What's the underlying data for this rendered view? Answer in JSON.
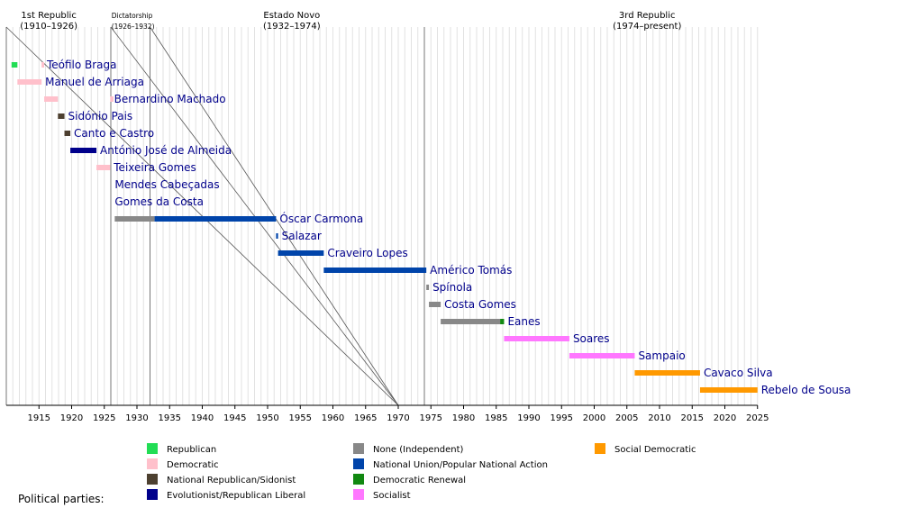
{
  "chart_data": {
    "type": "timeline",
    "title": "",
    "xlabel": "",
    "ylabel": "",
    "xlim": [
      1910,
      2025
    ],
    "x_ticks": [
      1915,
      1920,
      1925,
      1930,
      1935,
      1940,
      1945,
      1950,
      1955,
      1960,
      1965,
      1970,
      1975,
      1980,
      1985,
      1990,
      1995,
      2000,
      2005,
      2010,
      2015,
      2020,
      2025
    ],
    "grid": true,
    "eras": [
      {
        "name": "1st Republic",
        "range": "(1910–1926)",
        "start": 1910,
        "end": 1926
      },
      {
        "name": "Dictatorship",
        "range": "(1926–1932)",
        "start": 1926,
        "end": 1932
      },
      {
        "name": "Estado Novo",
        "range": "(1932–1974)",
        "start": 1932,
        "end": 1974
      },
      {
        "name": "3rd Republic",
        "range": "(1974–present)",
        "start": 1974,
        "end": 2025
      }
    ],
    "presidents": [
      {
        "name": "Teófilo Braga",
        "terms": [
          {
            "start": 1910.8,
            "end": 1911.7,
            "party": "republican"
          },
          {
            "start": 1915.4,
            "end": 1915.8,
            "party": "democratic"
          }
        ]
      },
      {
        "name": "Manuel de Arriaga",
        "terms": [
          {
            "start": 1911.7,
            "end": 1915.4,
            "party": "democratic"
          }
        ]
      },
      {
        "name": "Bernardino Machado",
        "terms": [
          {
            "start": 1915.8,
            "end": 1917.9,
            "party": "democratic"
          },
          {
            "start": 1925.9,
            "end": 1926.4,
            "party": "democratic"
          }
        ]
      },
      {
        "name": "Sidónio Pais",
        "terms": [
          {
            "start": 1917.9,
            "end": 1918.9,
            "party": "national_republican"
          }
        ]
      },
      {
        "name": "Canto e Castro",
        "terms": [
          {
            "start": 1918.9,
            "end": 1919.8,
            "party": "national_republican"
          }
        ]
      },
      {
        "name": "António José de Almeida",
        "terms": [
          {
            "start": 1919.8,
            "end": 1923.8,
            "party": "evolutionist"
          }
        ]
      },
      {
        "name": "Teixeira Gomes",
        "terms": [
          {
            "start": 1923.8,
            "end": 1925.9,
            "party": "democratic"
          }
        ]
      },
      {
        "name": "Mendes Cabeçadas",
        "terms": []
      },
      {
        "name": "Gomes da Costa",
        "terms": []
      },
      {
        "name": "Óscar Carmona",
        "terms": [
          {
            "start": 1926.6,
            "end": 1932.7,
            "party": "independent"
          },
          {
            "start": 1932.7,
            "end": 1951.3,
            "party": "national_union"
          }
        ]
      },
      {
        "name": "Salazar",
        "terms": [
          {
            "start": 1951.3,
            "end": 1951.6,
            "party": "national_union"
          }
        ]
      },
      {
        "name": "Craveiro Lopes",
        "terms": [
          {
            "start": 1951.6,
            "end": 1958.6,
            "party": "national_union"
          }
        ]
      },
      {
        "name": "Américo Tomás",
        "terms": [
          {
            "start": 1958.6,
            "end": 1974.3,
            "party": "national_union"
          }
        ]
      },
      {
        "name": "Spínola",
        "terms": [
          {
            "start": 1974.3,
            "end": 1974.7,
            "party": "independent"
          }
        ]
      },
      {
        "name": "Costa Gomes",
        "terms": [
          {
            "start": 1974.7,
            "end": 1976.5,
            "party": "independent"
          }
        ]
      },
      {
        "name": "Eanes",
        "terms": [
          {
            "start": 1976.5,
            "end": 1985.6,
            "party": "independent"
          },
          {
            "start": 1985.6,
            "end": 1986.2,
            "party": "democratic_renewal"
          }
        ]
      },
      {
        "name": "Soares",
        "terms": [
          {
            "start": 1986.2,
            "end": 1996.2,
            "party": "socialist"
          }
        ]
      },
      {
        "name": "Sampaio",
        "terms": [
          {
            "start": 1996.2,
            "end": 2006.2,
            "party": "socialist"
          }
        ]
      },
      {
        "name": "Cavaco Silva",
        "terms": [
          {
            "start": 2006.2,
            "end": 2016.2,
            "party": "social_democratic"
          }
        ]
      },
      {
        "name": "Rebelo de Sousa",
        "terms": [
          {
            "start": 2016.2,
            "end": 2025,
            "party": "social_democratic"
          }
        ]
      }
    ],
    "legend_heading": "Political parties:",
    "legend_placement": "bottom",
    "parties": [
      {
        "key": "republican",
        "name": "Republican",
        "color": "#22dd55"
      },
      {
        "key": "democratic",
        "name": "Democratic",
        "color": "#ffc0cb"
      },
      {
        "key": "national_republican",
        "name": "National Republican/Sidonist",
        "color": "#4d4030"
      },
      {
        "key": "evolutionist",
        "name": "Evolutionist/Republican Liberal",
        "color": "#00008b"
      },
      {
        "key": "independent",
        "name": "None (Independent)",
        "color": "#888888"
      },
      {
        "key": "national_union",
        "name": "National Union/Popular National Action",
        "color": "#0044aa"
      },
      {
        "key": "democratic_renewal",
        "name": "Democratic Renewal",
        "color": "#118811"
      },
      {
        "key": "socialist",
        "name": "Socialist",
        "color": "#ff77ff"
      },
      {
        "key": "social_democratic",
        "name": "Social Democratic",
        "color": "#ff9900"
      }
    ]
  }
}
